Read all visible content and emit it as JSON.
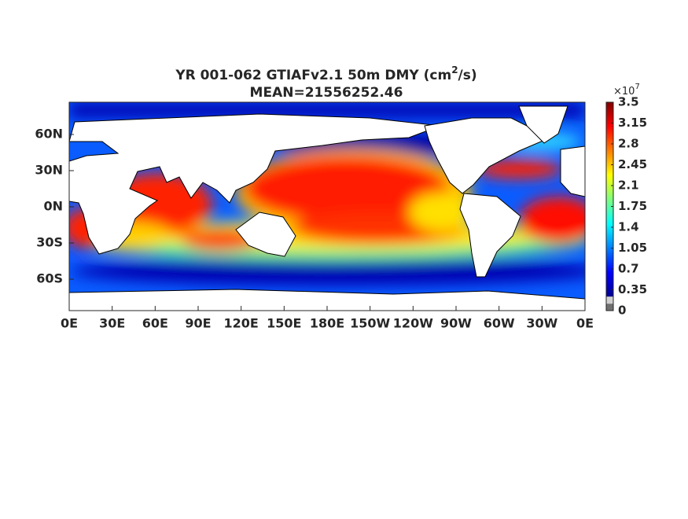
{
  "title": {
    "main": "YR 001-062 GTIAFv2.1 50m DMY (cm",
    "superscript": "2",
    "end": "/s)"
  },
  "subtitle": "MEAN=21556252.46",
  "map": {
    "xtick_labels": [
      "0E",
      "30E",
      "60E",
      "90E",
      "120E",
      "150E",
      "180E",
      "150W",
      "120W",
      "90W",
      "60W",
      "30W",
      "0E"
    ],
    "ytick_labels": [
      "60N",
      "30N",
      "0N",
      "30S",
      "60S"
    ]
  },
  "colorbar": {
    "exponent_base": "×10",
    "exponent": "7",
    "lim": [
      0,
      3.5
    ],
    "ticks": [
      0,
      0.35,
      0.7,
      1.05,
      1.4,
      1.75,
      2.1,
      2.45,
      2.8,
      3.15,
      3.5
    ]
  }
}
